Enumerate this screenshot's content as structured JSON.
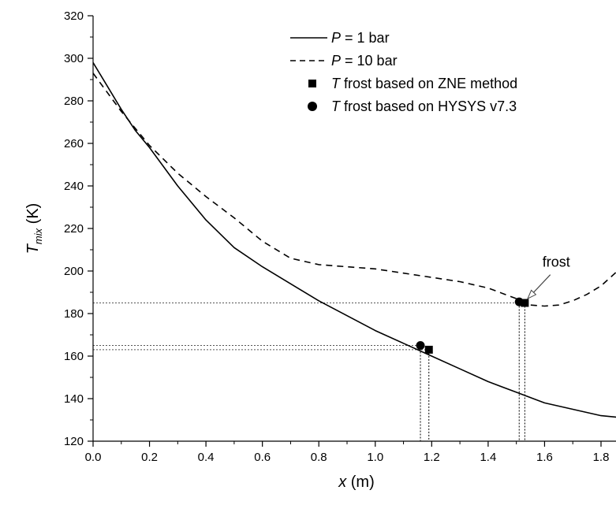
{
  "chart_data": {
    "type": "line",
    "xlabel_var": "x",
    "xlabel_unit": " (m)",
    "ylabel_var": "T",
    "ylabel_sub": "mix",
    "ylabel_unit": " (K)",
    "xlim": [
      0.0,
      1.88
    ],
    "ylim": [
      120,
      320
    ],
    "xticks": [
      "0.0",
      "0.2",
      "0.4",
      "0.6",
      "0.8",
      "1.0",
      "1.2",
      "1.4",
      "1.6",
      "1.8"
    ],
    "yticks": [
      "120",
      "140",
      "160",
      "180",
      "200",
      "220",
      "240",
      "260",
      "280",
      "300",
      "320"
    ],
    "grid": false,
    "legend_position": "top-right",
    "series": [
      {
        "name_var": "P",
        "name_rest": " = 1 bar",
        "style": "solid",
        "x": [
          0.0,
          0.05,
          0.1,
          0.15,
          0.2,
          0.3,
          0.4,
          0.5,
          0.6,
          0.7,
          0.8,
          0.9,
          1.0,
          1.1,
          1.2,
          1.3,
          1.4,
          1.5,
          1.6,
          1.7,
          1.8,
          1.88
        ],
        "y": [
          298,
          287,
          276,
          266,
          258,
          240,
          224,
          211,
          202,
          194,
          186,
          179,
          172,
          166,
          160,
          154,
          148,
          143,
          138,
          135,
          132,
          131
        ]
      },
      {
        "name_var": "P",
        "name_rest": " = 10 bar",
        "style": "dashed",
        "x": [
          0.0,
          0.05,
          0.1,
          0.15,
          0.2,
          0.3,
          0.4,
          0.5,
          0.6,
          0.7,
          0.8,
          0.9,
          1.0,
          1.1,
          1.2,
          1.3,
          1.4,
          1.5,
          1.55,
          1.6,
          1.65,
          1.7,
          1.75,
          1.8,
          1.85,
          1.88
        ],
        "y": [
          293,
          284,
          275,
          267,
          259,
          246,
          235,
          225,
          214,
          206,
          203,
          202,
          201,
          199,
          197,
          195,
          192,
          187,
          184,
          183.5,
          184,
          186,
          189,
          193,
          199,
          204
        ]
      }
    ],
    "markers": [
      {
        "name_var": "T",
        "name_rest": " frost based on ZNE method",
        "shape": "square",
        "points": [
          {
            "x": 1.19,
            "y": 163
          },
          {
            "x": 1.53,
            "y": 185
          }
        ]
      },
      {
        "name_var": "T",
        "name_rest": " frost based on HYSYS v7.3",
        "shape": "circle",
        "points": [
          {
            "x": 1.16,
            "y": 165
          },
          {
            "x": 1.51,
            "y": 185.5
          }
        ]
      }
    ],
    "reference_lines": [
      {
        "y": 185,
        "x": 1.51
      },
      {
        "y": 185,
        "x": 1.53
      },
      {
        "y": 165,
        "x": 1.16
      },
      {
        "y": 163,
        "x": 1.19
      }
    ],
    "annotation": {
      "text": "frost",
      "x": 1.57,
      "y": 199,
      "arrow_to_x": 1.54,
      "arrow_to_y": 187
    }
  }
}
